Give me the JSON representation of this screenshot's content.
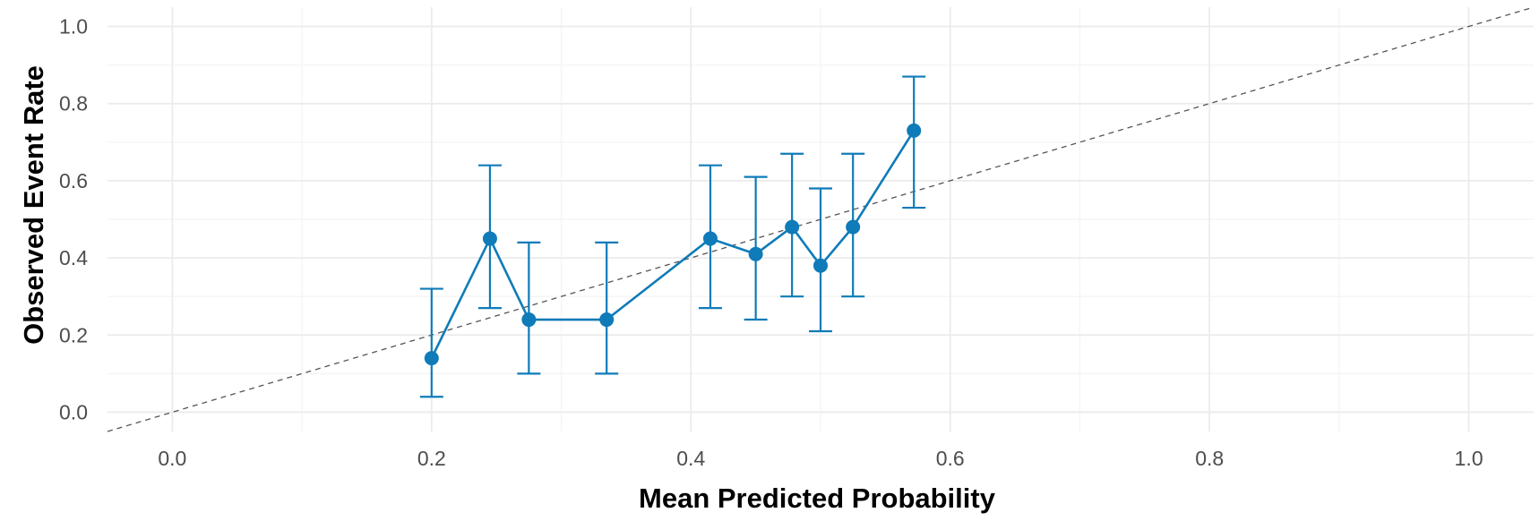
{
  "chart_data": {
    "type": "line",
    "title": "",
    "xlabel": "Mean Predicted Probability",
    "ylabel": "Observed Event Rate",
    "xlim": [
      -0.05,
      1.05
    ],
    "ylim": [
      -0.05,
      1.05
    ],
    "x_ticks": [
      0.0,
      0.2,
      0.4,
      0.6,
      0.8,
      1.0
    ],
    "x_tick_labels": [
      "0.0",
      "0.2",
      "0.4",
      "0.6",
      "0.8",
      "1.0"
    ],
    "y_ticks": [
      0.0,
      0.2,
      0.4,
      0.6,
      0.8,
      1.0
    ],
    "y_tick_labels": [
      "0.0",
      "0.2",
      "0.4",
      "0.6",
      "0.8",
      "1.0"
    ],
    "grid": true,
    "reference_line": {
      "style": "dashed",
      "slope": 1,
      "intercept": 0,
      "color": "#555555"
    },
    "series": [
      {
        "color": "#0f7bb8",
        "points": [
          {
            "x": 0.2,
            "y": 0.14,
            "ymin": 0.04,
            "ymax": 0.32
          },
          {
            "x": 0.245,
            "y": 0.45,
            "ymin": 0.27,
            "ymax": 0.64
          },
          {
            "x": 0.275,
            "y": 0.24,
            "ymin": 0.1,
            "ymax": 0.44
          },
          {
            "x": 0.335,
            "y": 0.24,
            "ymin": 0.1,
            "ymax": 0.44
          },
          {
            "x": 0.415,
            "y": 0.45,
            "ymin": 0.27,
            "ymax": 0.64
          },
          {
            "x": 0.45,
            "y": 0.41,
            "ymin": 0.24,
            "ymax": 0.61
          },
          {
            "x": 0.478,
            "y": 0.48,
            "ymin": 0.3,
            "ymax": 0.67
          },
          {
            "x": 0.5,
            "y": 0.38,
            "ymin": 0.21,
            "ymax": 0.58
          },
          {
            "x": 0.525,
            "y": 0.48,
            "ymin": 0.3,
            "ymax": 0.67
          },
          {
            "x": 0.572,
            "y": 0.73,
            "ymin": 0.53,
            "ymax": 0.87
          }
        ]
      }
    ]
  },
  "colors": {
    "background": "#ffffff",
    "grid_major": "#ebebeb",
    "grid_minor": "#f5f5f5"
  }
}
